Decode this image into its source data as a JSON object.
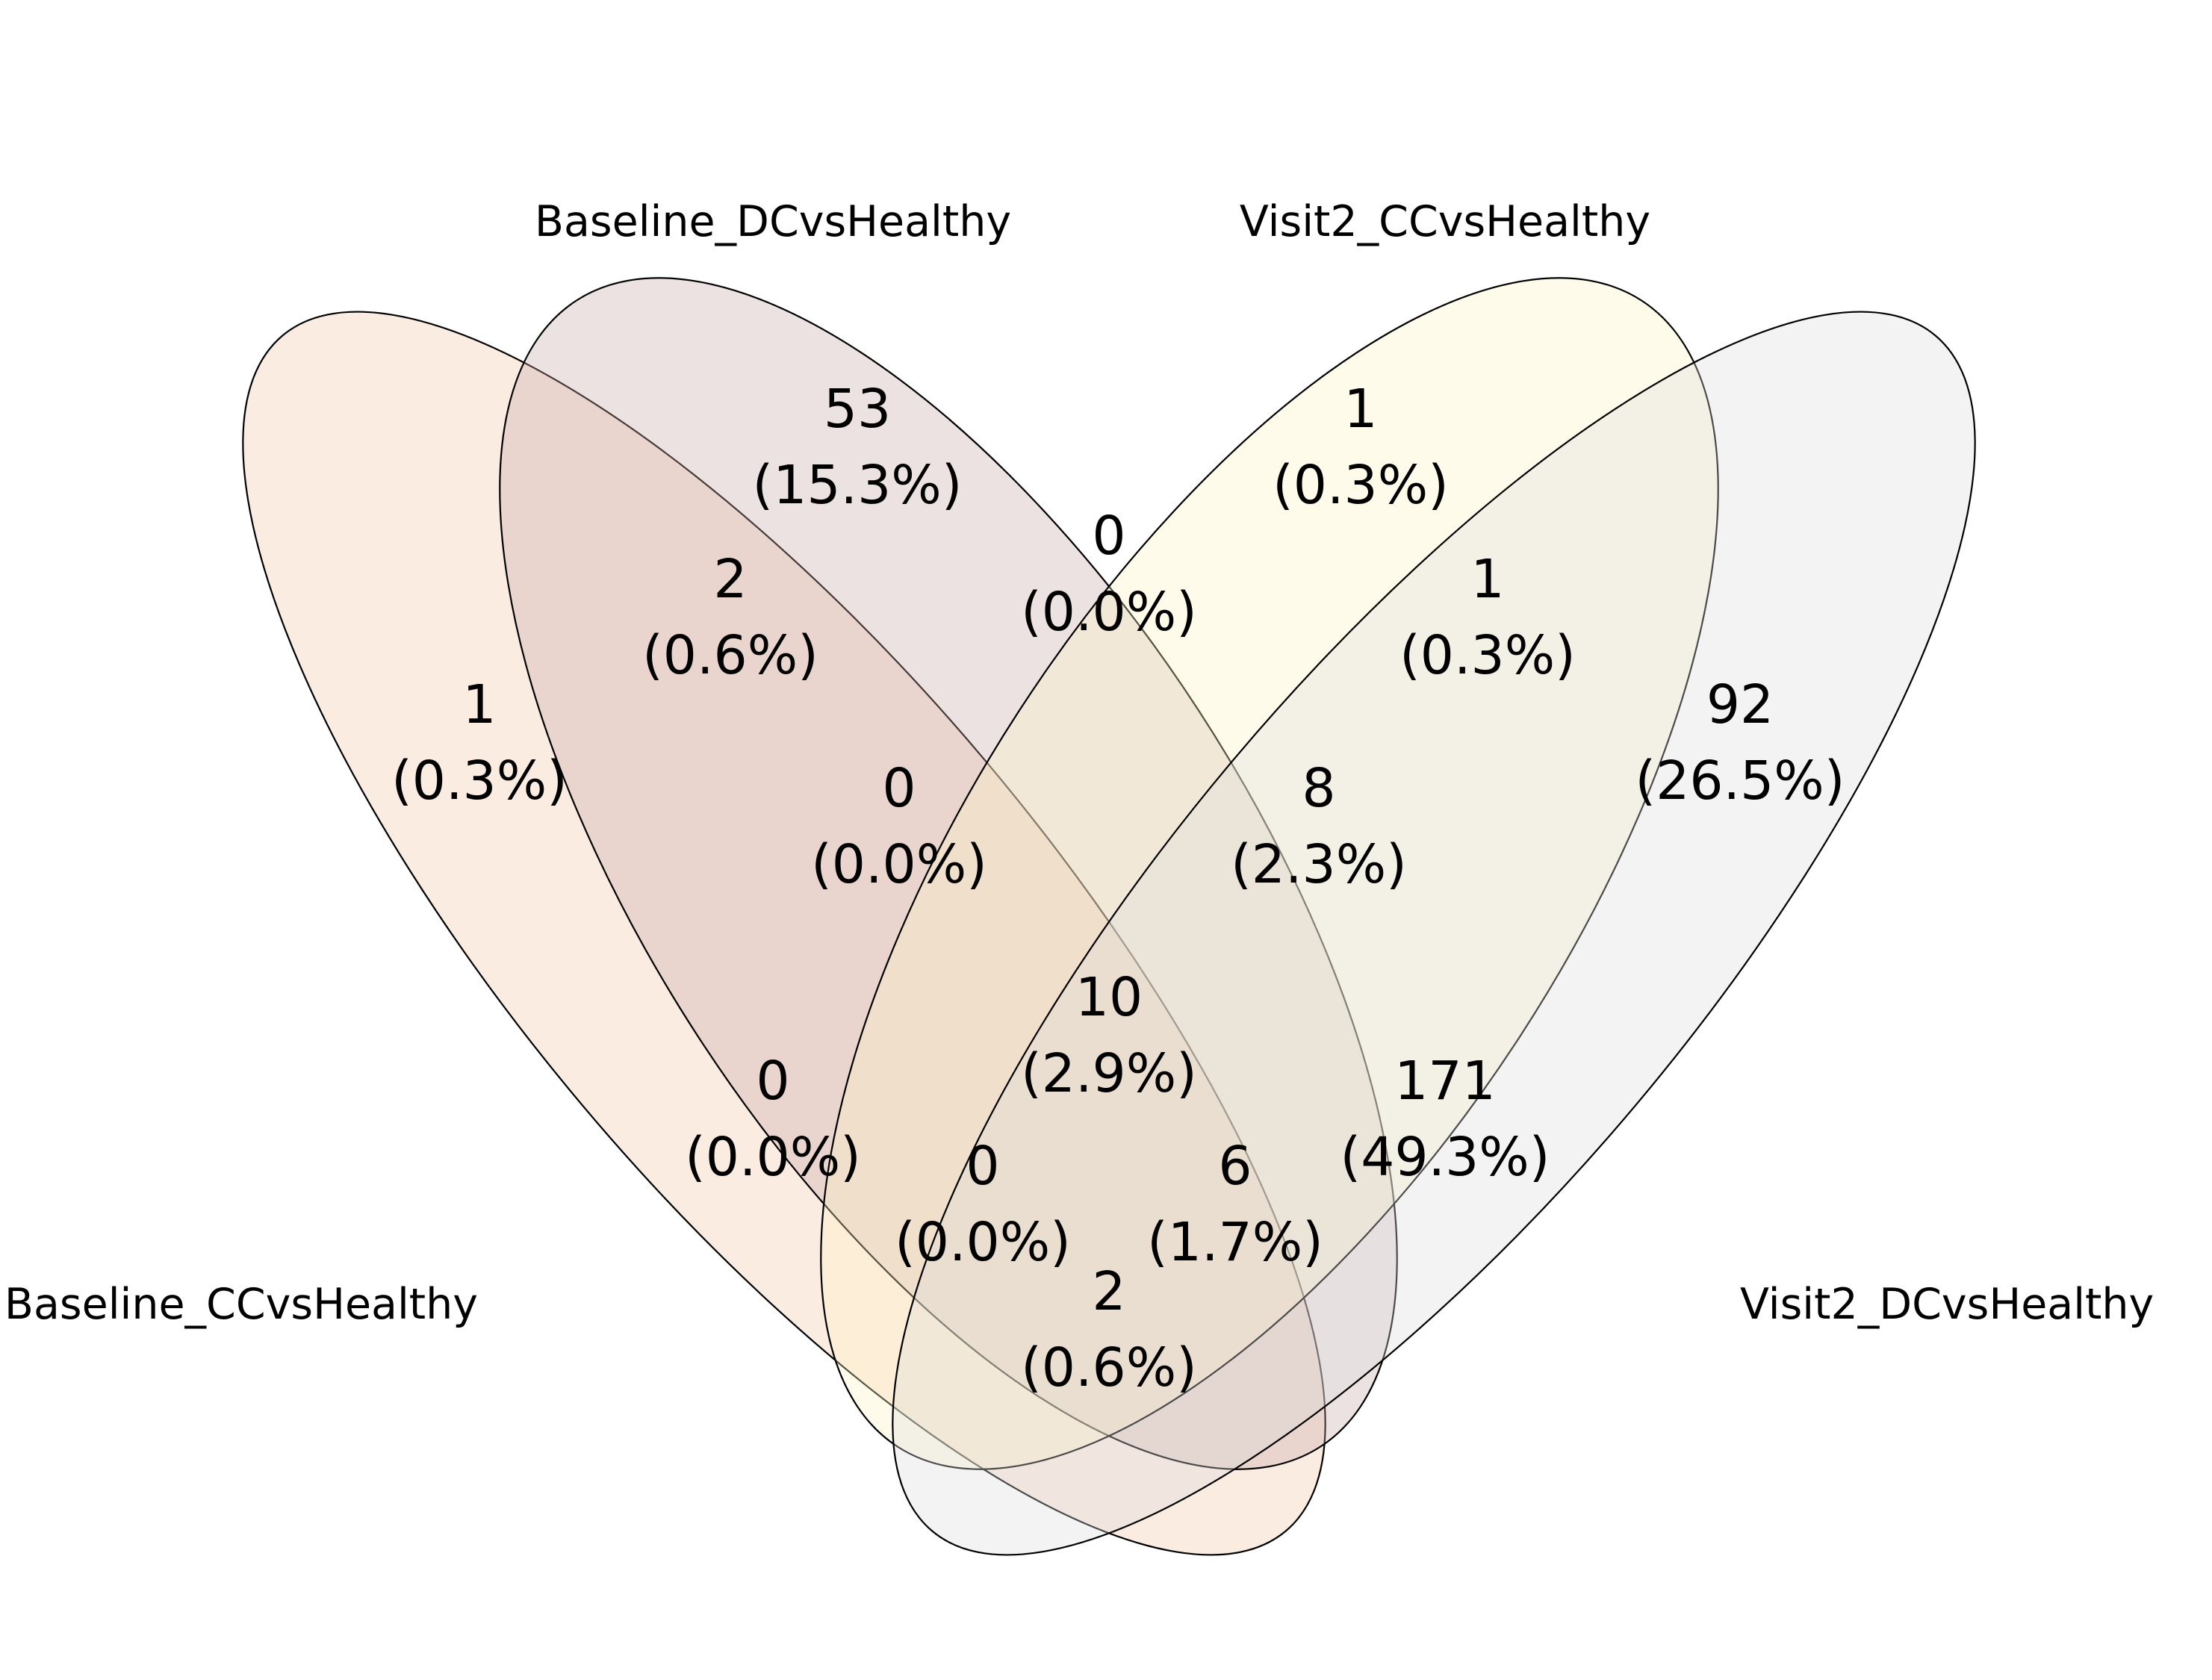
{
  "sets": [
    {
      "id": "A",
      "name": "Baseline_CCvsHealthy",
      "color": "#f2c7a8"
    },
    {
      "id": "B",
      "name": "Baseline_DCvsHealthy",
      "color": "#c8aba9"
    },
    {
      "id": "C",
      "name": "Visit2_CCvsHealthy",
      "color": "#fff4c4"
    },
    {
      "id": "D",
      "name": "Visit2_DCvsHealthy",
      "color": "#dcdcdc"
    }
  ],
  "regions": [
    {
      "sets": "A",
      "count": "1",
      "percent": "(0.3%)"
    },
    {
      "sets": "B",
      "count": "53",
      "percent": "(15.3%)"
    },
    {
      "sets": "C",
      "count": "1",
      "percent": "(0.3%)"
    },
    {
      "sets": "D",
      "count": "92",
      "percent": "(26.5%)"
    },
    {
      "sets": "AB",
      "count": "2",
      "percent": "(0.6%)"
    },
    {
      "sets": "BC",
      "count": "0",
      "percent": "(0.0%)"
    },
    {
      "sets": "CD",
      "count": "1",
      "percent": "(0.3%)"
    },
    {
      "sets": "ABC",
      "count": "0",
      "percent": "(0.0%)"
    },
    {
      "sets": "BCD",
      "count": "8",
      "percent": "(2.3%)"
    },
    {
      "sets": "ABCD",
      "count": "10",
      "percent": "(2.9%)"
    },
    {
      "sets": "AC",
      "count": "0",
      "percent": "(0.0%)"
    },
    {
      "sets": "BD",
      "count": "171",
      "percent": "(49.3%)"
    },
    {
      "sets": "ACD",
      "count": "0",
      "percent": "(0.0%)"
    },
    {
      "sets": "ABD",
      "count": "6",
      "percent": "(1.7%)"
    },
    {
      "sets": "AD",
      "count": "2",
      "percent": "(0.6%)"
    }
  ]
}
